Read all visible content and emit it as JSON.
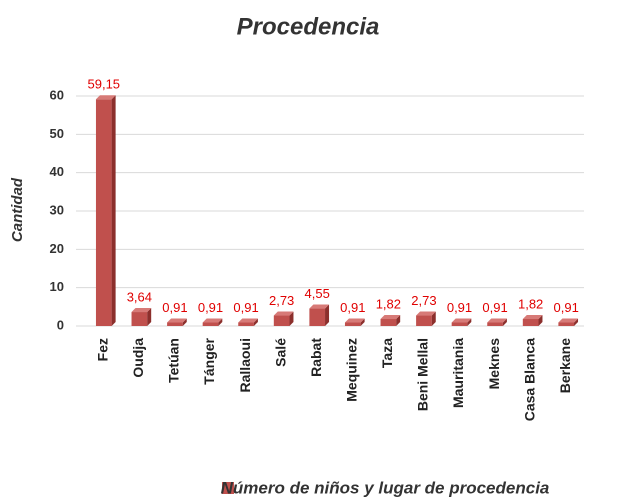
{
  "chart_data": {
    "type": "bar",
    "title": "Procedencia",
    "y_label": "Cantidad",
    "categories": [
      "Fez",
      "Oudja",
      "Tetúan",
      "Tánger",
      "Rallaoui",
      "Salé",
      "Rabat",
      "Mequinez",
      "Taza",
      "Beni Mellal",
      "Mauritania",
      "Meknes",
      "Casa Blanca",
      "Berkane"
    ],
    "series": [
      {
        "name": "Número de niños y lugar de procedencia",
        "color": "#c0504d",
        "values": [
          59.15,
          3.64,
          0.91,
          0.91,
          0.91,
          2.73,
          4.55,
          0.91,
          1.82,
          2.73,
          0.91,
          0.91,
          1.82,
          0.91
        ],
        "value_labels": [
          "59,15",
          "3,64",
          "0,91",
          "0,91",
          "0,91",
          "2,73",
          "4,55",
          "0,91",
          "1,82",
          "2,73",
          "0,91",
          "0,91",
          "1,82",
          "0,91"
        ]
      }
    ],
    "ylim": [
      0,
      60
    ],
    "yticks": [
      0,
      10,
      20,
      30,
      40,
      50,
      60
    ],
    "grid": true,
    "legend": "bottom"
  }
}
